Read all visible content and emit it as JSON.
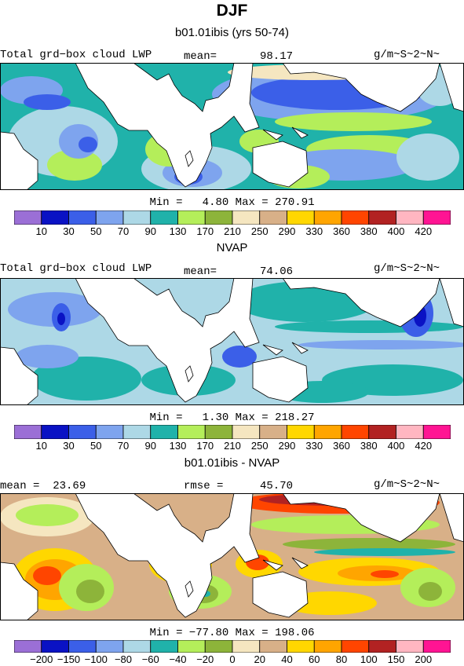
{
  "title": "DJF",
  "panels": [
    {
      "id": "model",
      "heading": "b01.01ibis (yrs 50-74)",
      "left_label": "Total grd−box cloud LWP",
      "stat_label": "mean=",
      "stat_value": "98.17",
      "units": "g/m~S~2~N~",
      "minmax": "Min =   4.80 Max = 270.91"
    },
    {
      "id": "obs",
      "heading": "NVAP",
      "left_label": "Total grd−box cloud LWP",
      "stat_label": "mean=",
      "stat_value": "74.06",
      "units": "g/m~S~2~N~",
      "minmax": "Min =   1.30 Max = 218.27"
    },
    {
      "id": "diff",
      "heading": "b01.01ibis - NVAP",
      "left_label": "mean =  23.69",
      "stat_label": "rmse =",
      "stat_value": "45.70",
      "units": "g/m~S~2~N~",
      "minmax": "Min = −77.80 Max = 198.06"
    }
  ],
  "colorbar_colors": [
    "#9b6fd6",
    "#0a12c4",
    "#3b5fe8",
    "#7ea4ee",
    "#add8e6",
    "#20b2aa",
    "#b4ee5a",
    "#8db43a",
    "#f5e6c0",
    "#d8b088",
    "#ffd700",
    "#ffa500",
    "#ff4500",
    "#b22222",
    "#ffb6c1",
    "#ff1493"
  ],
  "colorbar_labels_abs": [
    "10",
    "30",
    "50",
    "70",
    "90",
    "130",
    "170",
    "210",
    "250",
    "290",
    "330",
    "360",
    "380",
    "400",
    "420"
  ],
  "colorbar_labels_diff": [
    "−200",
    "−150",
    "−100",
    "−80",
    "−60",
    "−40",
    "−20",
    "0",
    "20",
    "40",
    "60",
    "80",
    "100",
    "150",
    "200"
  ]
}
